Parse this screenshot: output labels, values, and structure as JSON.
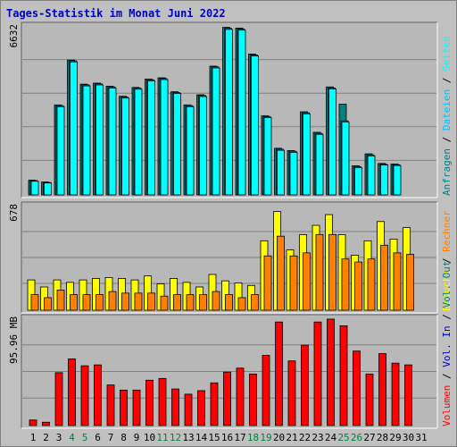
{
  "title": "Tages-Statistik im Monat Juni 2022",
  "colors": {
    "background": "#c0c0c0",
    "plot_bg": "#b8b8b8",
    "anfragen": "#008080",
    "dateien": "#00c0ff",
    "seiten": "#00ffff",
    "besuche": "#ffff00",
    "rechner": "#ff8000",
    "vol_in": "#ff0000",
    "title": "#0000c0",
    "weekend": "#008040"
  },
  "chart_data": [
    {
      "type": "bar",
      "panel": "top",
      "ymax_label": "6632",
      "ylim": [
        0,
        6632
      ],
      "categories": [
        "1",
        "2",
        "3",
        "4",
        "5",
        "6",
        "7",
        "8",
        "9",
        "10",
        "11",
        "12",
        "13",
        "14",
        "15",
        "16",
        "17",
        "18",
        "19",
        "20",
        "21",
        "22",
        "23",
        "24",
        "25",
        "26",
        "27",
        "28",
        "29",
        "30",
        "31"
      ],
      "series": [
        {
          "name": "Anfragen",
          "values": [
            580,
            510,
            3550,
            5320,
            4370,
            4410,
            4290,
            3890,
            4240,
            4570,
            4620,
            4070,
            3550,
            3950,
            5080,
            6610,
            6580,
            5560,
            3120,
            1840,
            1750,
            3280,
            2470,
            4260,
            3580,
            1150,
            1620,
            1240,
            1220,
            null,
            null
          ]
        },
        {
          "name": "Dateien",
          "values": [
            560,
            490,
            3520,
            5290,
            4340,
            4380,
            4260,
            3860,
            4210,
            4540,
            4590,
            4040,
            3520,
            3920,
            5050,
            6570,
            6540,
            5520,
            3090,
            1800,
            1720,
            3240,
            2430,
            4220,
            2920,
            1110,
            1580,
            1210,
            1190,
            null,
            null
          ]
        },
        {
          "name": "Seiten",
          "values": [
            540,
            470,
            3480,
            5250,
            4300,
            4340,
            4220,
            3820,
            4170,
            4500,
            4550,
            4000,
            3480,
            3880,
            5010,
            6530,
            6500,
            5480,
            3050,
            1760,
            1680,
            3200,
            2390,
            4180,
            2880,
            1070,
            1540,
            1180,
            1160,
            null,
            null
          ]
        }
      ],
      "right_legend": [
        "Anfragen",
        "Dateien",
        "Seiten"
      ]
    },
    {
      "type": "bar",
      "panel": "middle",
      "ymax_label": "678",
      "ylim": [
        0,
        678
      ],
      "categories": [
        "1",
        "2",
        "3",
        "4",
        "5",
        "6",
        "7",
        "8",
        "9",
        "10",
        "11",
        "12",
        "13",
        "14",
        "15",
        "16",
        "17",
        "18",
        "19",
        "20",
        "21",
        "22",
        "23",
        "24",
        "25",
        "26",
        "27",
        "28",
        "29",
        "30",
        "31"
      ],
      "series": [
        {
          "name": "Besuche",
          "values": [
            198,
            152,
            198,
            182,
            198,
            208,
            214,
            208,
            198,
            224,
            172,
            208,
            182,
            152,
            234,
            192,
            178,
            162,
            454,
            645,
            394,
            494,
            555,
            625,
            494,
            360,
            454,
            580,
            465,
            540,
            null
          ]
        },
        {
          "name": "Rechner",
          "values": [
            102,
            82,
            132,
            102,
            102,
            102,
            122,
            112,
            112,
            112,
            92,
            102,
            102,
            102,
            122,
            102,
            82,
            102,
            355,
            484,
            355,
            375,
            495,
            495,
            335,
            315,
            335,
            425,
            375,
            365,
            null
          ]
        }
      ],
      "right_legend": [
        "Besuche",
        "Rechner"
      ]
    },
    {
      "type": "bar",
      "panel": "bottom",
      "ymax_label": "95.96 MB",
      "ylim": [
        0,
        95.96
      ],
      "categories": [
        "1",
        "2",
        "3",
        "4",
        "5",
        "6",
        "7",
        "8",
        "9",
        "10",
        "11",
        "12",
        "13",
        "14",
        "15",
        "16",
        "17",
        "18",
        "19",
        "20",
        "21",
        "22",
        "23",
        "24",
        "25",
        "26",
        "27",
        "28",
        "29",
        "30",
        "31"
      ],
      "series": [
        {
          "name": "Volumen",
          "values": [
            5.0,
            3.0,
            47.7,
            60.1,
            53.9,
            54.7,
            36.6,
            32.0,
            32.0,
            40.9,
            42.5,
            33.0,
            28.3,
            31.5,
            38.5,
            48.2,
            51.8,
            46.5,
            63.3,
            93.4,
            58.3,
            72.5,
            93.4,
            96.0,
            90.0,
            67.2,
            46.5,
            64.9,
            56.3,
            54.7,
            null
          ]
        }
      ],
      "right_legend": [
        "Volumen",
        "Vol. In",
        "Vol. Out"
      ]
    }
  ],
  "x_axis": {
    "labels": [
      "1",
      "2",
      "3",
      "4",
      "5",
      "6",
      "7",
      "8",
      "9",
      "10",
      "11",
      "12",
      "13",
      "14",
      "15",
      "16",
      "17",
      "18",
      "19",
      "20",
      "21",
      "22",
      "23",
      "24",
      "25",
      "26",
      "27",
      "28",
      "29",
      "30",
      "31"
    ],
    "weekend_days": [
      "4",
      "5",
      "11",
      "12",
      "18",
      "19",
      "25",
      "26"
    ]
  },
  "legend_separator": " / "
}
